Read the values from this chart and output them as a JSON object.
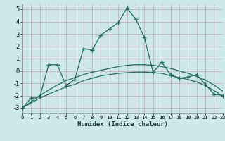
{
  "xlabel": "Humidex (Indice chaleur)",
  "bg_color": "#cde8ea",
  "grid_color": "#b0d0d2",
  "line_color": "#1a6b5a",
  "x_values": [
    0,
    1,
    2,
    3,
    4,
    5,
    6,
    7,
    8,
    9,
    10,
    11,
    12,
    13,
    14,
    15,
    16,
    17,
    18,
    19,
    20,
    21,
    22,
    23
  ],
  "jagged_y": [
    -3.0,
    -2.2,
    -2.1,
    0.5,
    0.5,
    -1.2,
    -0.7,
    1.8,
    1.7,
    2.9,
    3.4,
    3.9,
    5.1,
    4.2,
    2.7,
    -0.1,
    0.7,
    -0.3,
    -0.6,
    -0.5,
    -0.3,
    -1.1,
    -1.9,
    -2.0
  ],
  "smooth1_y": [
    -3.0,
    -2.6,
    -2.2,
    -1.9,
    -1.6,
    -1.3,
    -1.1,
    -0.8,
    -0.6,
    -0.4,
    -0.3,
    -0.2,
    -0.15,
    -0.1,
    -0.1,
    -0.15,
    -0.2,
    -0.4,
    -0.55,
    -0.7,
    -0.9,
    -1.2,
    -1.6,
    -2.05
  ],
  "smooth2_y": [
    -3.0,
    -2.5,
    -2.0,
    -1.55,
    -1.15,
    -0.8,
    -0.55,
    -0.3,
    -0.1,
    0.05,
    0.2,
    0.35,
    0.45,
    0.5,
    0.5,
    0.45,
    0.35,
    0.2,
    0.0,
    -0.2,
    -0.45,
    -0.75,
    -1.15,
    -1.65
  ],
  "ylim": [
    -3.4,
    5.4
  ],
  "yticks": [
    -3,
    -2,
    -1,
    0,
    1,
    2,
    3,
    4,
    5
  ],
  "xlim": [
    0,
    23
  ],
  "xticks": [
    0,
    1,
    2,
    3,
    4,
    5,
    6,
    7,
    8,
    9,
    10,
    11,
    12,
    13,
    14,
    15,
    16,
    17,
    18,
    19,
    20,
    21,
    22,
    23
  ]
}
